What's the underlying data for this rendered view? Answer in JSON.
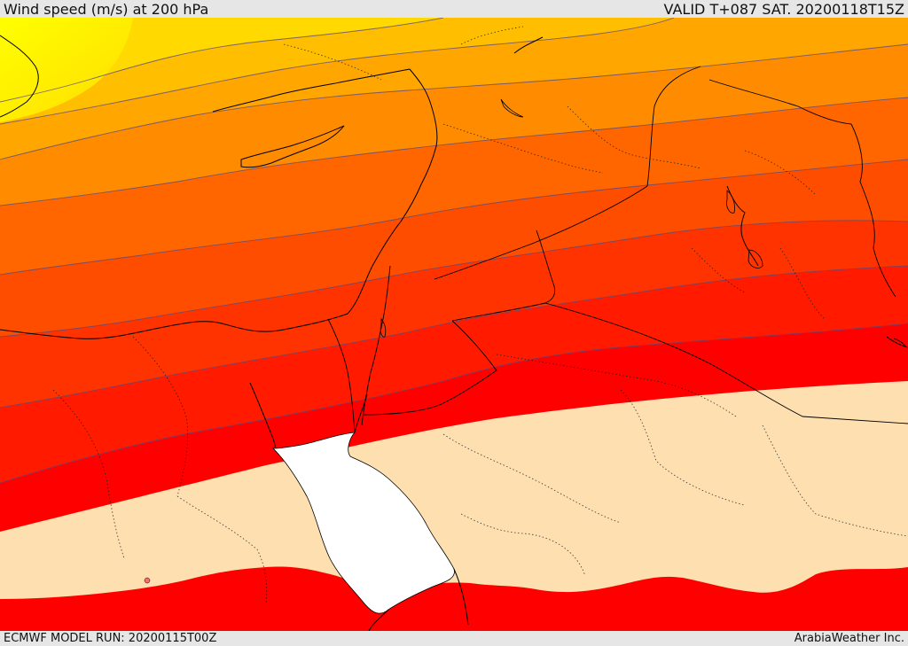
{
  "header": {
    "title": "Wind speed (m/s) at 200 hPa",
    "valid_time": "VALID T+087 SAT. 20200118T15Z"
  },
  "footer": {
    "model_run": "ECMWF MODEL RUN: 20200115T00Z",
    "provider": "ArabiaWeather Inc."
  },
  "map": {
    "variable": "wind speed",
    "level": "200 hPa",
    "palette": [
      "#ffff00",
      "#ffd900",
      "#ffbf00",
      "#ffa600",
      "#ff8c00",
      "#ff6600",
      "#ff4d00",
      "#ff3300",
      "#ff1a00",
      "#ff0000",
      "#fddfb0",
      "#ffffff"
    ],
    "coastline_color": "#000000",
    "contour_color": "#5a4a7a"
  }
}
